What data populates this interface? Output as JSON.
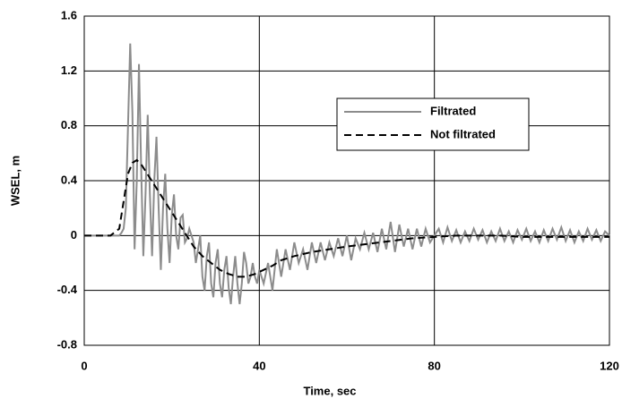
{
  "chart_data": {
    "type": "line",
    "xlabel": "Time, sec",
    "ylabel": "WSEL, m",
    "xlim": [
      0,
      120
    ],
    "ylim": [
      -0.8,
      1.6
    ],
    "xticks": [
      0,
      40,
      80,
      120
    ],
    "yticks": [
      -0.8,
      -0.4,
      0,
      0.4,
      0.8,
      1.2,
      1.6
    ],
    "grid": true,
    "legend": "upper right",
    "series": [
      {
        "name": "Filtrated",
        "color": "#8c8c8c",
        "dash": false,
        "x": [
          0,
          4,
          8,
          8.5,
          9,
          9.5,
          10,
          10.5,
          11,
          11.5,
          12,
          12.5,
          13,
          13.5,
          14,
          14.5,
          15,
          15.5,
          16,
          16.5,
          17,
          17.5,
          18,
          18.5,
          19,
          19.5,
          20,
          20.5,
          21,
          21.5,
          22,
          22.5,
          23,
          23.5,
          24,
          25,
          25.5,
          26,
          26.5,
          27,
          27.5,
          28,
          28.5,
          29,
          29.5,
          30,
          30.5,
          31,
          31.5,
          32,
          32.5,
          33,
          33.5,
          34,
          34.5,
          35,
          35.5,
          36,
          36.5,
          37,
          37.5,
          38,
          38.5,
          39,
          39.5,
          40,
          41,
          42,
          43,
          44,
          45,
          46,
          47,
          48,
          49,
          50,
          51,
          52,
          53,
          54,
          55,
          56,
          57,
          58,
          59,
          60,
          61,
          62,
          63,
          64,
          65,
          66,
          67,
          68,
          69,
          70,
          71,
          72,
          73,
          74,
          75,
          76,
          77,
          78,
          79,
          80,
          81,
          82,
          83,
          84,
          85,
          86,
          87,
          88,
          89,
          90,
          91,
          92,
          93,
          94,
          95,
          96,
          97,
          98,
          99,
          100,
          101,
          102,
          103,
          104,
          105,
          106,
          107,
          108,
          109,
          110,
          111,
          112,
          113,
          114,
          115,
          116,
          117,
          118,
          119,
          120
        ],
        "values": [
          0,
          0,
          0,
          0.02,
          0.05,
          0.2,
          0.8,
          1.4,
          0.9,
          -0.1,
          0.4,
          1.25,
          0.5,
          -0.15,
          0.3,
          0.88,
          0.3,
          -0.15,
          0.4,
          0.72,
          0.2,
          -0.25,
          0.2,
          0.45,
          0.05,
          -0.2,
          0.15,
          0.3,
          0,
          -0.1,
          0.13,
          0.15,
          -0.05,
          -0.02,
          0.05,
          -0.05,
          -0.2,
          -0.1,
          0,
          -0.3,
          -0.4,
          -0.15,
          -0.05,
          -0.35,
          -0.45,
          -0.2,
          -0.1,
          -0.35,
          -0.45,
          -0.25,
          -0.15,
          -0.38,
          -0.5,
          -0.3,
          -0.15,
          -0.35,
          -0.5,
          -0.35,
          -0.12,
          -0.2,
          -0.35,
          -0.3,
          -0.2,
          -0.3,
          -0.35,
          -0.25,
          -0.35,
          -0.2,
          -0.4,
          -0.1,
          -0.3,
          -0.1,
          -0.25,
          -0.05,
          -0.2,
          -0.1,
          -0.25,
          -0.05,
          -0.2,
          -0.05,
          -0.18,
          -0.05,
          -0.15,
          -0.02,
          -0.15,
          0,
          -0.18,
          -0.02,
          -0.1,
          0.02,
          -0.1,
          0.02,
          -0.12,
          0.05,
          -0.1,
          0.1,
          -0.12,
          0.08,
          -0.08,
          0.05,
          -0.1,
          0.05,
          -0.08,
          0.05,
          -0.05,
          0,
          0.05,
          -0.05,
          0.06,
          -0.04,
          0.04,
          -0.05,
          0.03,
          -0.04,
          0.05,
          -0.03,
          0.04,
          -0.05,
          0.03,
          -0.04,
          0.05,
          -0.04,
          0.03,
          -0.05,
          0.04,
          -0.03,
          0.05,
          -0.04,
          0.03,
          -0.05,
          0.04,
          -0.04,
          0.05,
          -0.03,
          0.06,
          -0.04,
          0.04,
          -0.05,
          0.03,
          -0.04,
          0.05,
          -0.03,
          0.04,
          -0.04,
          0.03,
          0
        ]
      },
      {
        "name": "Not filtrated",
        "color": "#000000",
        "dash": true,
        "x": [
          0,
          6,
          8,
          9,
          10,
          11,
          12,
          13,
          15,
          17,
          19,
          21,
          23,
          25,
          27,
          29,
          31,
          33,
          35,
          37,
          39,
          41,
          43,
          45,
          48,
          52,
          56,
          60,
          65,
          70,
          75,
          80,
          85,
          90,
          95,
          100,
          105,
          110,
          115,
          120
        ],
        "values": [
          0,
          0,
          0.05,
          0.25,
          0.45,
          0.53,
          0.55,
          0.52,
          0.42,
          0.32,
          0.22,
          0.12,
          0.02,
          -0.08,
          -0.15,
          -0.2,
          -0.25,
          -0.28,
          -0.3,
          -0.3,
          -0.28,
          -0.25,
          -0.22,
          -0.18,
          -0.15,
          -0.12,
          -0.1,
          -0.08,
          -0.06,
          -0.04,
          -0.02,
          -0.01,
          0,
          0,
          0,
          -0.01,
          -0.01,
          -0.01,
          -0.01,
          -0.01
        ]
      }
    ]
  }
}
